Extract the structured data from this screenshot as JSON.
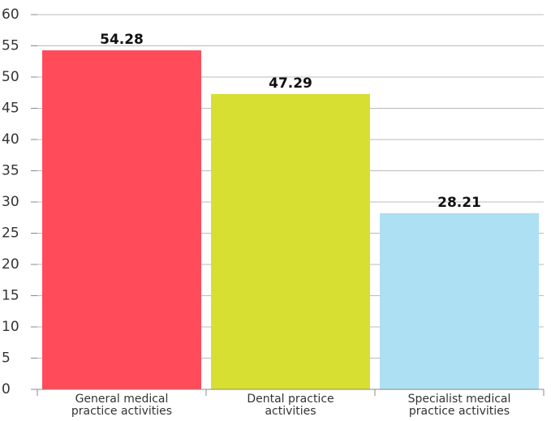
{
  "chart_data": {
    "type": "bar",
    "categories": [
      "General medical practice activities",
      "Dental practice activities",
      "Specialist medical practice activities"
    ],
    "values": [
      54.28,
      47.29,
      28.21
    ],
    "colors": [
      "#ff4b5a",
      "#d7df32",
      "#ade0f2"
    ],
    "ylim": [
      0,
      60
    ],
    "yticks": [
      0,
      5,
      10,
      15,
      20,
      25,
      30,
      35,
      40,
      45,
      50,
      55,
      60
    ],
    "grid": true
  }
}
